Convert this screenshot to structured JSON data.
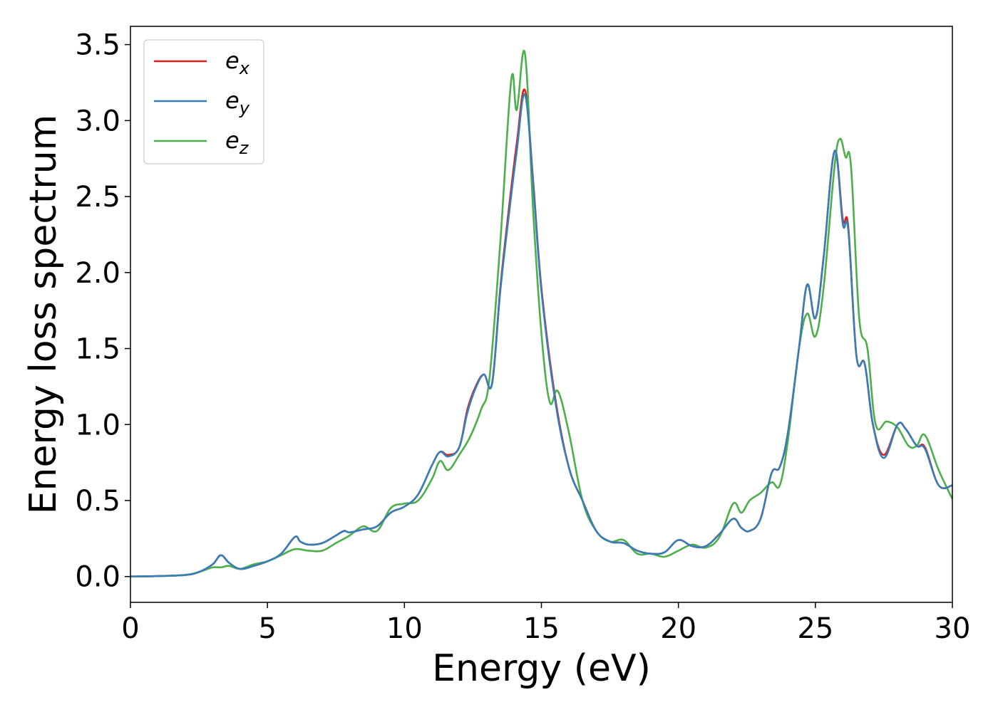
{
  "chart_data": {
    "type": "line",
    "title": "",
    "xlabel": "Energy (eV)",
    "ylabel": "Energy loss spectrum",
    "xlim": [
      0,
      30
    ],
    "ylim": [
      -0.17,
      3.62
    ],
    "xticks": [
      0,
      5,
      10,
      15,
      20,
      25,
      30
    ],
    "yticks": [
      0.0,
      0.5,
      1.0,
      1.5,
      2.0,
      2.5,
      3.0,
      3.5
    ],
    "grid": false,
    "legend_position": "top-left",
    "series": [
      {
        "name": "e",
        "subscript": "x",
        "color": "#e41a1c",
        "x": [
          0,
          1,
          2,
          2.5,
          3,
          3.3,
          3.6,
          4,
          4.5,
          5,
          5.5,
          6,
          6.2,
          6.5,
          7,
          7.5,
          7.8,
          8,
          8.5,
          9,
          9.5,
          10,
          10.5,
          11,
          11.3,
          11.6,
          12,
          12.3,
          12.6,
          12.9,
          13.2,
          13.5,
          13.8,
          14.1,
          14.4,
          14.7,
          15,
          15.5,
          16,
          16.5,
          17,
          17.5,
          18,
          18.5,
          19,
          19.5,
          20,
          20.5,
          21,
          21.5,
          22,
          22.3,
          22.6,
          23,
          23.4,
          23.7,
          24,
          24.4,
          24.7,
          25,
          25.3,
          25.7,
          26,
          26.2,
          26.5,
          26.8,
          27.1,
          27.5,
          28,
          28.3,
          28.7,
          29,
          29.5,
          30
        ],
        "y": [
          0,
          0.003,
          0.01,
          0.03,
          0.08,
          0.14,
          0.09,
          0.05,
          0.07,
          0.1,
          0.15,
          0.26,
          0.23,
          0.21,
          0.22,
          0.27,
          0.3,
          0.29,
          0.31,
          0.33,
          0.42,
          0.46,
          0.54,
          0.73,
          0.82,
          0.8,
          0.85,
          1.1,
          1.25,
          1.33,
          1.27,
          1.9,
          2.4,
          2.85,
          3.2,
          2.6,
          1.9,
          1.18,
          0.72,
          0.5,
          0.3,
          0.23,
          0.22,
          0.17,
          0.15,
          0.16,
          0.24,
          0.2,
          0.2,
          0.28,
          0.38,
          0.32,
          0.3,
          0.38,
          0.68,
          0.72,
          0.95,
          1.5,
          1.92,
          1.7,
          2.1,
          2.8,
          2.35,
          2.3,
          1.45,
          1.4,
          1.0,
          0.8,
          1.0,
          0.97,
          0.86,
          0.85,
          0.6,
          0.6
        ]
      },
      {
        "name": "e",
        "subscript": "y",
        "color": "#377eb8",
        "x": [
          0,
          1,
          2,
          2.5,
          3,
          3.3,
          3.6,
          4,
          4.5,
          5,
          5.5,
          6,
          6.2,
          6.5,
          7,
          7.5,
          7.8,
          8,
          8.5,
          9,
          9.5,
          10,
          10.5,
          11,
          11.3,
          11.6,
          12,
          12.3,
          12.6,
          12.9,
          13.2,
          13.5,
          13.8,
          14.1,
          14.4,
          14.7,
          15,
          15.5,
          16,
          16.5,
          17,
          17.5,
          18,
          18.5,
          19,
          19.5,
          20,
          20.5,
          21,
          21.5,
          22,
          22.3,
          22.6,
          23,
          23.4,
          23.7,
          24,
          24.4,
          24.7,
          25,
          25.3,
          25.7,
          26,
          26.2,
          26.5,
          26.8,
          27.1,
          27.5,
          28,
          28.3,
          28.7,
          29,
          29.5,
          30
        ],
        "y": [
          0,
          0.003,
          0.01,
          0.03,
          0.08,
          0.14,
          0.09,
          0.05,
          0.07,
          0.1,
          0.15,
          0.26,
          0.23,
          0.21,
          0.22,
          0.27,
          0.3,
          0.29,
          0.31,
          0.33,
          0.42,
          0.46,
          0.54,
          0.73,
          0.82,
          0.79,
          0.85,
          1.08,
          1.24,
          1.33,
          1.27,
          1.88,
          2.36,
          2.8,
          3.17,
          2.58,
          1.88,
          1.16,
          0.72,
          0.5,
          0.3,
          0.23,
          0.22,
          0.17,
          0.15,
          0.16,
          0.24,
          0.2,
          0.2,
          0.28,
          0.38,
          0.32,
          0.3,
          0.38,
          0.68,
          0.72,
          0.95,
          1.5,
          1.92,
          1.7,
          2.1,
          2.8,
          2.32,
          2.28,
          1.45,
          1.4,
          1.0,
          0.78,
          1.0,
          0.97,
          0.86,
          0.84,
          0.6,
          0.6
        ]
      },
      {
        "name": "e",
        "subscript": "z",
        "color": "#4daf4a",
        "x": [
          0,
          1,
          2,
          2.5,
          3,
          3.3,
          3.6,
          4,
          4.5,
          5,
          5.5,
          6,
          6.5,
          7,
          7.5,
          8,
          8.5,
          9,
          9.5,
          10,
          10.5,
          11,
          11.3,
          11.6,
          12,
          12.4,
          12.8,
          13.1,
          13.5,
          13.9,
          14.1,
          14.4,
          14.7,
          15,
          15.3,
          15.6,
          16,
          16.5,
          17,
          17.5,
          18,
          18.5,
          19,
          19.5,
          20,
          20.5,
          21,
          21.5,
          22,
          22.3,
          22.6,
          23,
          23.4,
          23.7,
          24,
          24.4,
          24.7,
          25,
          25.3,
          25.7,
          25.9,
          26.1,
          26.3,
          26.6,
          26.9,
          27.2,
          27.6,
          28,
          28.4,
          28.7,
          29,
          29.5,
          30
        ],
        "y": [
          0,
          0.003,
          0.01,
          0.03,
          0.06,
          0.06,
          0.07,
          0.05,
          0.08,
          0.1,
          0.14,
          0.18,
          0.17,
          0.17,
          0.22,
          0.27,
          0.33,
          0.3,
          0.45,
          0.48,
          0.5,
          0.64,
          0.76,
          0.7,
          0.8,
          0.92,
          1.1,
          1.3,
          2.2,
          3.27,
          3.07,
          3.44,
          2.4,
          1.6,
          1.15,
          1.22,
          0.95,
          0.5,
          0.3,
          0.23,
          0.24,
          0.15,
          0.15,
          0.13,
          0.17,
          0.21,
          0.19,
          0.26,
          0.48,
          0.42,
          0.5,
          0.55,
          0.62,
          0.6,
          0.9,
          1.5,
          1.73,
          1.58,
          1.9,
          2.7,
          2.88,
          2.76,
          2.7,
          1.7,
          1.5,
          1.0,
          1.02,
          0.98,
          0.86,
          0.86,
          0.93,
          0.7,
          0.51
        ]
      }
    ]
  }
}
